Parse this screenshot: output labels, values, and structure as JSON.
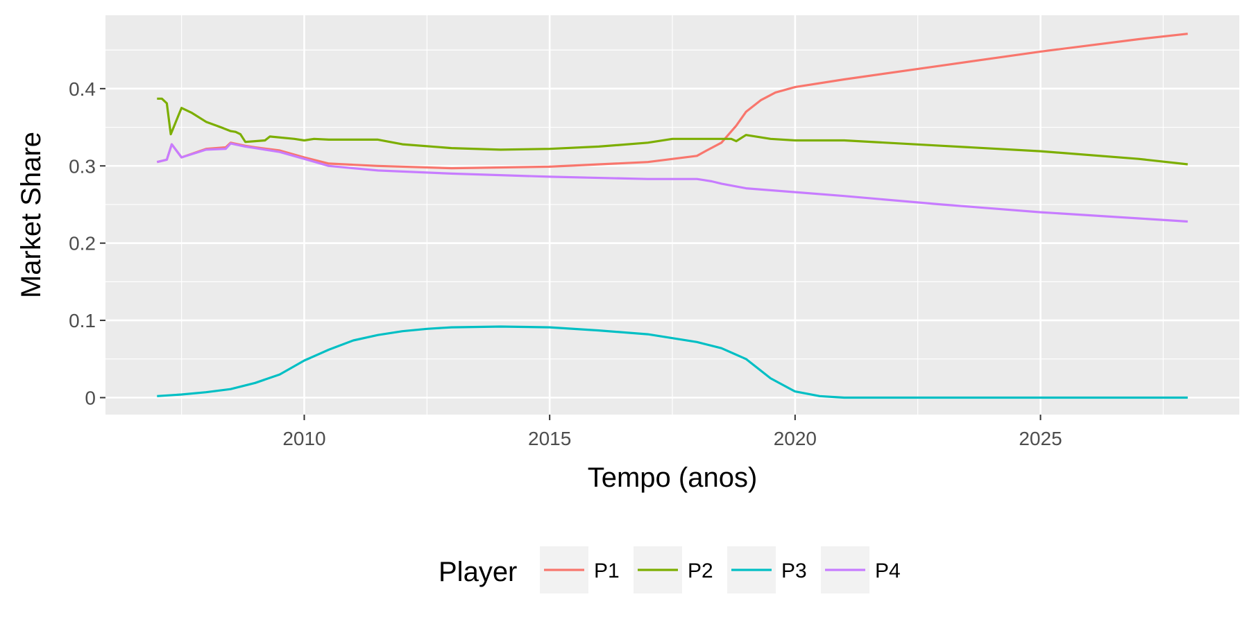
{
  "chart_data": {
    "type": "line",
    "xlabel": "Tempo (anos)",
    "ylabel": "Market Share",
    "xlim": [
      2005.95,
      2029.05
    ],
    "ylim": [
      -0.022,
      0.495
    ],
    "x_ticks": [
      2010,
      2015,
      2020,
      2025
    ],
    "x_tick_labels": [
      "2010",
      "2015",
      "2020",
      "2025"
    ],
    "y_ticks": [
      0,
      0.1,
      0.2,
      0.3,
      0.4
    ],
    "y_tick_labels": [
      "0",
      "0.1",
      "0.2",
      "0.3",
      "0.4"
    ],
    "grid": true,
    "background": "#ebebeb",
    "legend": {
      "title": "Player",
      "position": "bottom",
      "entries": [
        "P1",
        "P2",
        "P3",
        "P4"
      ]
    },
    "series": [
      {
        "name": "P1",
        "color": "#f8766d",
        "points": [
          [
            2007.0,
            0.305
          ],
          [
            2007.2,
            0.308
          ],
          [
            2007.3,
            0.328
          ],
          [
            2007.5,
            0.311
          ],
          [
            2008.0,
            0.322
          ],
          [
            2008.4,
            0.324
          ],
          [
            2008.5,
            0.33
          ],
          [
            2008.8,
            0.326
          ],
          [
            2009.0,
            0.324
          ],
          [
            2009.5,
            0.32
          ],
          [
            2010.0,
            0.311
          ],
          [
            2010.5,
            0.303
          ],
          [
            2011.5,
            0.3
          ],
          [
            2013.0,
            0.297
          ],
          [
            2015.0,
            0.299
          ],
          [
            2017.0,
            0.305
          ],
          [
            2018.0,
            0.313
          ],
          [
            2018.2,
            0.32
          ],
          [
            2018.5,
            0.33
          ],
          [
            2018.8,
            0.352
          ],
          [
            2019.0,
            0.37
          ],
          [
            2019.3,
            0.385
          ],
          [
            2019.6,
            0.395
          ],
          [
            2020.0,
            0.402
          ],
          [
            2021.0,
            0.412
          ],
          [
            2023.0,
            0.43
          ],
          [
            2025.0,
            0.448
          ],
          [
            2027.0,
            0.464
          ],
          [
            2028.0,
            0.471
          ]
        ]
      },
      {
        "name": "P2",
        "color": "#7cae00",
        "points": [
          [
            2007.0,
            0.387
          ],
          [
            2007.1,
            0.387
          ],
          [
            2007.2,
            0.381
          ],
          [
            2007.28,
            0.341
          ],
          [
            2007.5,
            0.375
          ],
          [
            2007.7,
            0.369
          ],
          [
            2008.0,
            0.357
          ],
          [
            2008.3,
            0.35
          ],
          [
            2008.5,
            0.345
          ],
          [
            2008.6,
            0.344
          ],
          [
            2008.7,
            0.341
          ],
          [
            2008.8,
            0.331
          ],
          [
            2009.0,
            0.332
          ],
          [
            2009.2,
            0.333
          ],
          [
            2009.3,
            0.338
          ],
          [
            2009.8,
            0.335
          ],
          [
            2010.0,
            0.333
          ],
          [
            2010.2,
            0.335
          ],
          [
            2010.5,
            0.334
          ],
          [
            2011.0,
            0.334
          ],
          [
            2011.5,
            0.334
          ],
          [
            2012.0,
            0.328
          ],
          [
            2013.0,
            0.323
          ],
          [
            2014.0,
            0.321
          ],
          [
            2015.0,
            0.322
          ],
          [
            2016.0,
            0.325
          ],
          [
            2017.0,
            0.33
          ],
          [
            2017.5,
            0.335
          ],
          [
            2018.0,
            0.335
          ],
          [
            2018.7,
            0.335
          ],
          [
            2018.8,
            0.332
          ],
          [
            2019.0,
            0.34
          ],
          [
            2019.5,
            0.335
          ],
          [
            2020.0,
            0.333
          ],
          [
            2021.0,
            0.333
          ],
          [
            2023.0,
            0.326
          ],
          [
            2025.0,
            0.319
          ],
          [
            2027.0,
            0.309
          ],
          [
            2028.0,
            0.302
          ]
        ]
      },
      {
        "name": "P3",
        "color": "#00bfc4",
        "points": [
          [
            2007.0,
            0.002
          ],
          [
            2007.5,
            0.004
          ],
          [
            2008.0,
            0.007
          ],
          [
            2008.5,
            0.011
          ],
          [
            2009.0,
            0.019
          ],
          [
            2009.5,
            0.03
          ],
          [
            2010.0,
            0.048
          ],
          [
            2010.5,
            0.062
          ],
          [
            2011.0,
            0.074
          ],
          [
            2011.5,
            0.081
          ],
          [
            2012.0,
            0.086
          ],
          [
            2012.5,
            0.089
          ],
          [
            2013.0,
            0.091
          ],
          [
            2014.0,
            0.092
          ],
          [
            2015.0,
            0.091
          ],
          [
            2016.0,
            0.087
          ],
          [
            2017.0,
            0.082
          ],
          [
            2018.0,
            0.072
          ],
          [
            2018.5,
            0.064
          ],
          [
            2019.0,
            0.05
          ],
          [
            2019.5,
            0.025
          ],
          [
            2020.0,
            0.008
          ],
          [
            2020.5,
            0.002
          ],
          [
            2021.0,
            0.0
          ],
          [
            2028.0,
            0.0
          ]
        ]
      },
      {
        "name": "P4",
        "color": "#c77cff",
        "points": [
          [
            2007.0,
            0.305
          ],
          [
            2007.2,
            0.308
          ],
          [
            2007.3,
            0.328
          ],
          [
            2007.5,
            0.311
          ],
          [
            2008.0,
            0.321
          ],
          [
            2008.4,
            0.322
          ],
          [
            2008.5,
            0.329
          ],
          [
            2008.8,
            0.325
          ],
          [
            2009.0,
            0.323
          ],
          [
            2009.5,
            0.318
          ],
          [
            2010.0,
            0.309
          ],
          [
            2010.5,
            0.3
          ],
          [
            2011.5,
            0.294
          ],
          [
            2013.0,
            0.29
          ],
          [
            2015.0,
            0.286
          ],
          [
            2017.0,
            0.283
          ],
          [
            2018.0,
            0.283
          ],
          [
            2018.3,
            0.28
          ],
          [
            2018.5,
            0.277
          ],
          [
            2019.0,
            0.271
          ],
          [
            2020.0,
            0.266
          ],
          [
            2021.0,
            0.261
          ],
          [
            2023.0,
            0.25
          ],
          [
            2025.0,
            0.24
          ],
          [
            2027.0,
            0.232
          ],
          [
            2028.0,
            0.228
          ]
        ]
      }
    ]
  }
}
